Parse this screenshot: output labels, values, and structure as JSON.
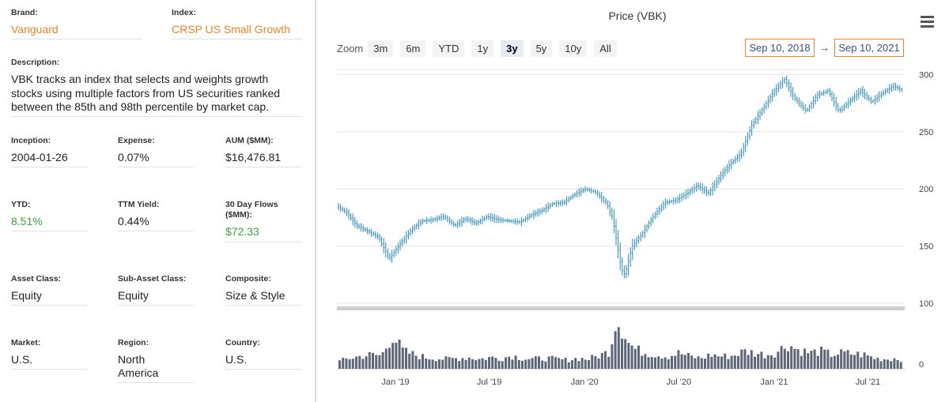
{
  "info": {
    "brand": {
      "label": "Brand:",
      "value": "Vanguard"
    },
    "index": {
      "label": "Index:",
      "value": "CRSP US Small Growth"
    },
    "description": {
      "label": "Description:",
      "value": "VBK tracks an index that selects and weights growth stocks using multiple factors from US securities ranked between the 85th and 98th percentile by market cap."
    },
    "inception": {
      "label": "Inception:",
      "value": "2004-01-26"
    },
    "expense": {
      "label": "Expense:",
      "value": "0.07%"
    },
    "aum": {
      "label": "AUM ($MM):",
      "value": "$16,476.81"
    },
    "ytd": {
      "label": "YTD:",
      "value": "8.51%"
    },
    "ttm_yield": {
      "label": "TTM Yield:",
      "value": "0.44%"
    },
    "flows": {
      "label": "30 Day Flows ($MM):",
      "value": "$72.33"
    },
    "asset_class": {
      "label": "Asset Class:",
      "value": "Equity"
    },
    "sub_asset_class": {
      "label": "Sub-Asset Class:",
      "value": "Equity"
    },
    "composite": {
      "label": "Composite:",
      "value": "Size & Style"
    },
    "market": {
      "label": "Market:",
      "value": "U.S."
    },
    "region": {
      "label": "Region:",
      "value": "North America"
    },
    "country": {
      "label": "Country:",
      "value": "U.S."
    }
  },
  "toolbar": {
    "zoom_label": "Zoom",
    "zoom_buttons": [
      "3m",
      "6m",
      "YTD",
      "1y",
      "3y",
      "5y",
      "10y",
      "All"
    ],
    "active_zoom": "3y",
    "range_from": "Sep 10, 2018",
    "range_arrow": "→",
    "range_to": "Sep 10, 2021"
  },
  "colors": {
    "price_line": "#2b8cbe",
    "volume_bars": "#5f6677",
    "accent_orange": "#e8862a",
    "positive_green": "#3ea33e"
  },
  "icons": {
    "menu": "hamburger-menu-icon"
  },
  "chart_data": {
    "type": "line",
    "title": "Price (VBK)",
    "price_ylim": [
      100,
      310
    ],
    "price_yticks": [
      100,
      150,
      200,
      250,
      300
    ],
    "volume_yticks": [
      0
    ],
    "x_range": [
      "2018-09-10",
      "2021-09-10"
    ],
    "x_tick_labels": [
      {
        "label": "Jan '19",
        "date": "2019-01-01"
      },
      {
        "label": "Jul '19",
        "date": "2019-07-01"
      },
      {
        "label": "Jan '20",
        "date": "2020-01-01"
      },
      {
        "label": "Jul '20",
        "date": "2020-07-01"
      },
      {
        "label": "Jan '21",
        "date": "2021-01-01"
      },
      {
        "label": "Jul '21",
        "date": "2021-07-01"
      }
    ],
    "grid": true,
    "series": [
      {
        "type": "ohlc",
        "x": [
          "2018-09-10",
          "2018-10-01",
          "2018-10-22",
          "2018-11-12",
          "2018-12-03",
          "2018-12-24",
          "2019-01-14",
          "2019-02-04",
          "2019-02-25",
          "2019-03-18",
          "2019-04-08",
          "2019-04-29",
          "2019-05-20",
          "2019-06-10",
          "2019-07-01",
          "2019-07-22",
          "2019-08-12",
          "2019-09-02",
          "2019-09-23",
          "2019-10-14",
          "2019-11-04",
          "2019-11-25",
          "2019-12-16",
          "2020-01-06",
          "2020-01-27",
          "2020-02-17",
          "2020-02-28",
          "2020-03-16",
          "2020-03-23",
          "2020-04-06",
          "2020-04-27",
          "2020-05-18",
          "2020-06-08",
          "2020-06-29",
          "2020-07-20",
          "2020-08-10",
          "2020-08-31",
          "2020-09-21",
          "2020-10-12",
          "2020-11-02",
          "2020-11-23",
          "2020-12-14",
          "2021-01-04",
          "2021-01-25",
          "2021-02-12",
          "2021-03-08",
          "2021-03-29",
          "2021-04-19",
          "2021-05-10",
          "2021-05-31",
          "2021-06-21",
          "2021-07-12",
          "2021-08-02",
          "2021-08-23",
          "2021-09-10"
        ],
        "values": [
          186,
          180,
          168,
          163,
          158,
          139,
          152,
          164,
          172,
          173,
          176,
          168,
          174,
          170,
          176,
          173,
          172,
          171,
          177,
          181,
          187,
          188,
          195,
          200,
          197,
          187,
          175,
          130,
          125,
          150,
          162,
          177,
          188,
          190,
          196,
          203,
          196,
          210,
          222,
          231,
          256,
          270,
          285,
          296,
          280,
          268,
          282,
          286,
          268,
          277,
          286,
          276,
          284,
          290,
          286
        ]
      },
      {
        "type": "column",
        "x": [
          "2018-09-10",
          "2018-10-01",
          "2018-10-22",
          "2018-11-12",
          "2018-12-03",
          "2018-12-24",
          "2019-01-14",
          "2019-02-04",
          "2019-02-25",
          "2019-03-18",
          "2019-04-08",
          "2019-04-29",
          "2019-05-20",
          "2019-06-10",
          "2019-07-01",
          "2019-07-22",
          "2019-08-12",
          "2019-09-02",
          "2019-09-23",
          "2019-10-14",
          "2019-11-04",
          "2019-11-25",
          "2019-12-16",
          "2020-01-06",
          "2020-01-27",
          "2020-02-17",
          "2020-02-28",
          "2020-03-16",
          "2020-03-23",
          "2020-04-06",
          "2020-04-27",
          "2020-05-18",
          "2020-06-08",
          "2020-06-29",
          "2020-07-20",
          "2020-08-10",
          "2020-08-31",
          "2020-09-21",
          "2020-10-12",
          "2020-11-02",
          "2020-11-23",
          "2020-12-14",
          "2021-01-04",
          "2021-01-25",
          "2021-02-12",
          "2021-03-08",
          "2021-03-29",
          "2021-04-19",
          "2021-05-10",
          "2021-05-31",
          "2021-06-21",
          "2021-07-12",
          "2021-08-02",
          "2021-08-23",
          "2021-09-10"
        ],
        "values": [
          8,
          12,
          14,
          16,
          15,
          38,
          20,
          16,
          13,
          12,
          11,
          12,
          13,
          11,
          13,
          12,
          15,
          12,
          11,
          12,
          11,
          10,
          12,
          11,
          15,
          20,
          58,
          42,
          30,
          22,
          18,
          16,
          14,
          18,
          14,
          12,
          16,
          14,
          15,
          20,
          18,
          16,
          19,
          28,
          22,
          18,
          20,
          16,
          18,
          17,
          16,
          12,
          11,
          12,
          10
        ]
      }
    ]
  }
}
